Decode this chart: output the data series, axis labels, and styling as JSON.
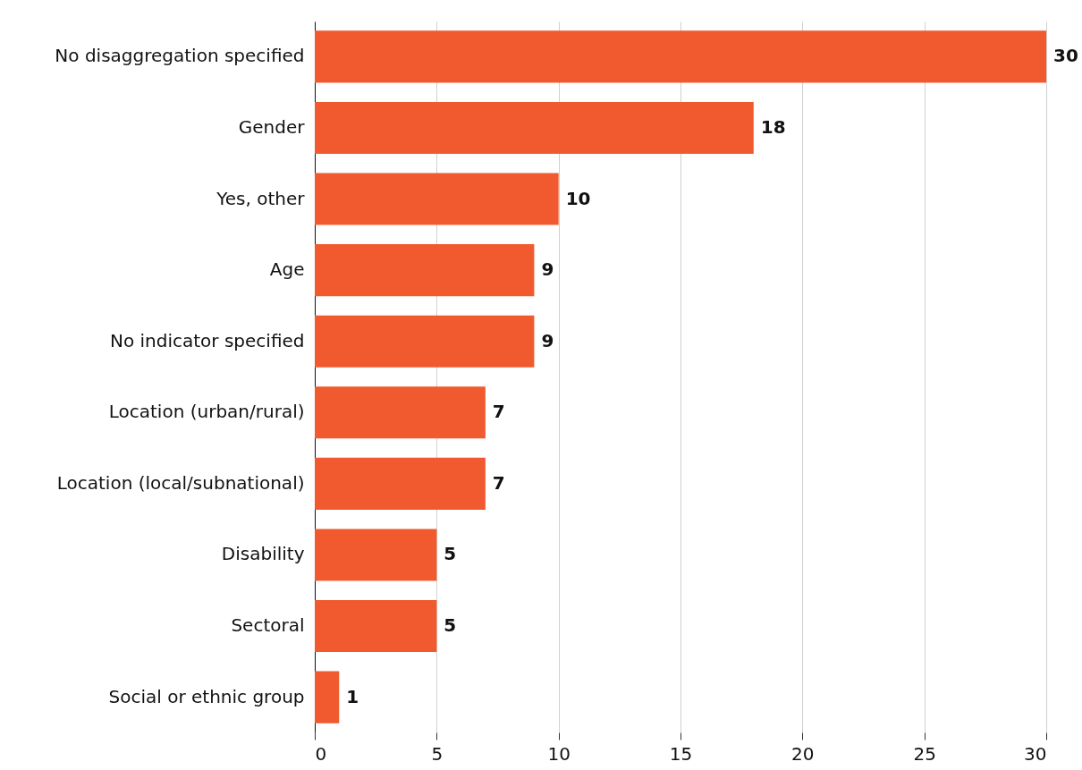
{
  "chart_data": {
    "type": "bar",
    "orientation": "horizontal",
    "categories": [
      "No disaggregation specified",
      "Gender",
      "Yes, other",
      "Age",
      "No indicator specified",
      "Location (urban/rural)",
      "Location (local/subnational)",
      "Disability",
      "Sectoral",
      "Social or ethnic group"
    ],
    "values": [
      30,
      18,
      10,
      9,
      9,
      7,
      7,
      5,
      5,
      1
    ],
    "color": "#f15a2f",
    "xlim": [
      0,
      30
    ],
    "xticks": [
      0,
      5,
      10,
      15,
      20,
      25,
      30
    ],
    "grid": "x",
    "data_labels": true
  }
}
